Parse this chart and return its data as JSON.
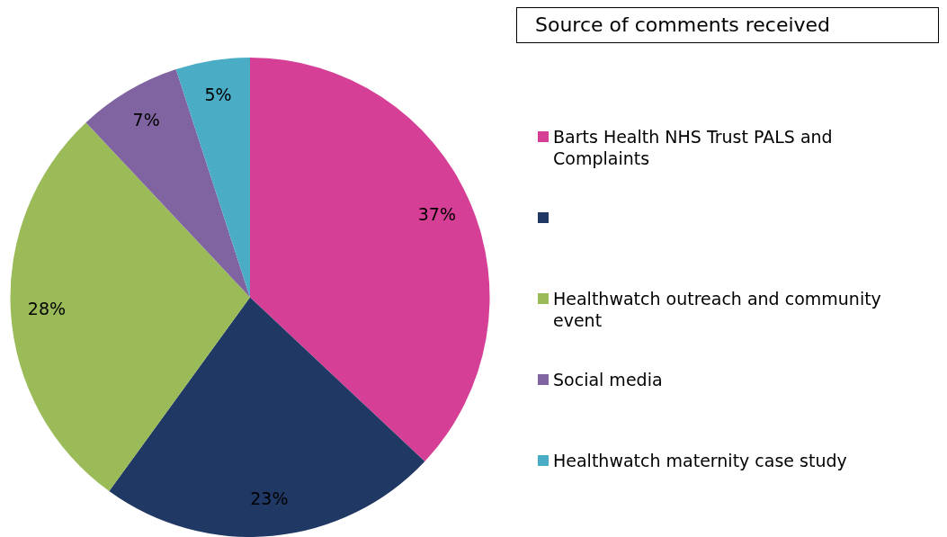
{
  "chart_data": {
    "type": "pie",
    "title": "Source of comments received",
    "categories": [
      "Barts Health NHS Trust PALS and Complaints",
      null,
      "Healthwatch outreach and community event",
      "Social media",
      "Healthwatch maternity case study"
    ],
    "values": [
      37,
      23,
      28,
      7,
      5
    ],
    "value_labels": [
      "37%",
      "23%",
      "28%",
      "7%",
      "5%"
    ],
    "colors": [
      "#d63f96",
      "#203864",
      "#9bbb59",
      "#8064a2",
      "#4bacc6"
    ],
    "legend": "right"
  }
}
